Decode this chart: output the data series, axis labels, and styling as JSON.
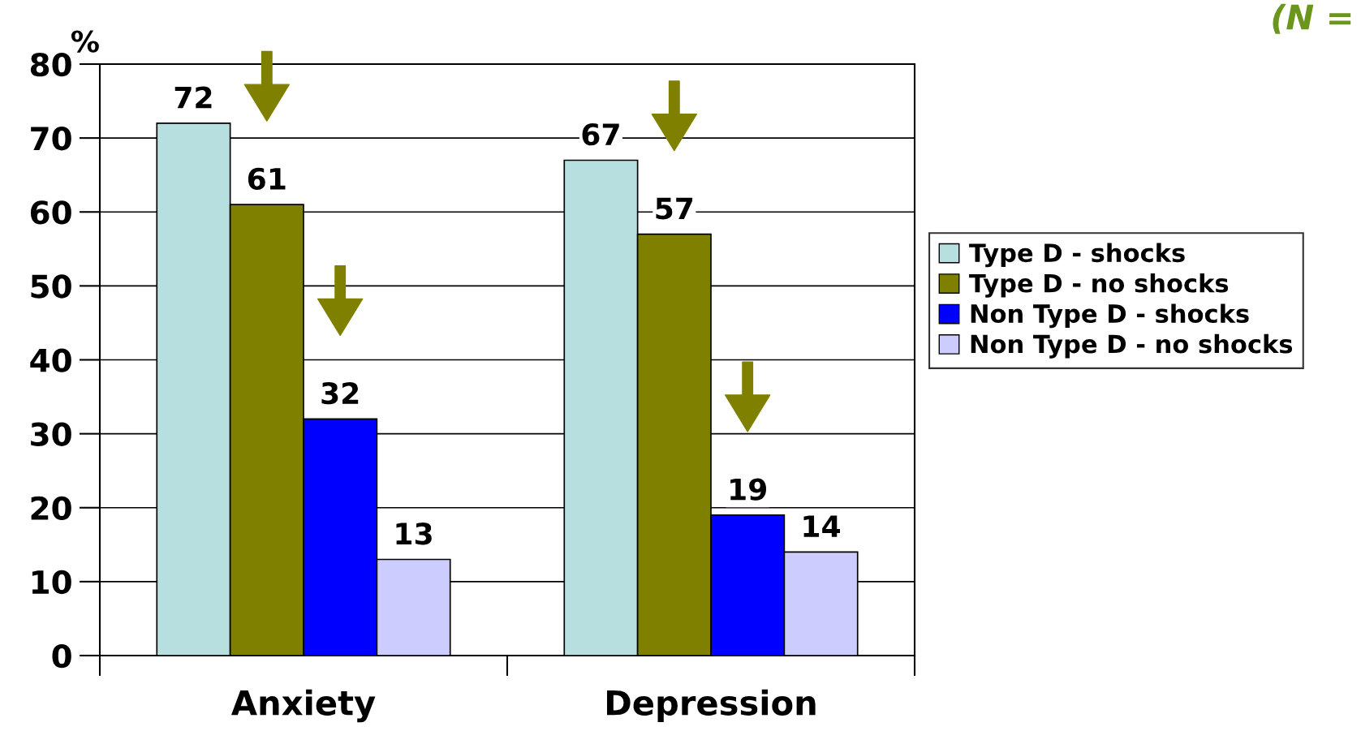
{
  "chart_data": {
    "type": "bar",
    "ylabel": "%",
    "categories": [
      "Anxiety",
      "Depression"
    ],
    "series": [
      {
        "name": "Type D - shocks",
        "color": "#b8dfe0",
        "values": [
          72,
          67
        ]
      },
      {
        "name": "Type D - no shocks",
        "color": "#808000",
        "values": [
          61,
          57
        ]
      },
      {
        "name": "Non Type D - shocks",
        "color": "#0000ff",
        "values": [
          32,
          19
        ]
      },
      {
        "name": "Non Type D - no shocks",
        "color": "#ccccff",
        "values": [
          13,
          14
        ]
      }
    ],
    "ylim": [
      0,
      80
    ],
    "yticks": [
      0,
      10,
      20,
      30,
      40,
      50,
      60,
      70,
      80
    ],
    "grid": "y",
    "legend": "right",
    "data_labels": true,
    "annotations": [
      "(N ="
    ]
  }
}
